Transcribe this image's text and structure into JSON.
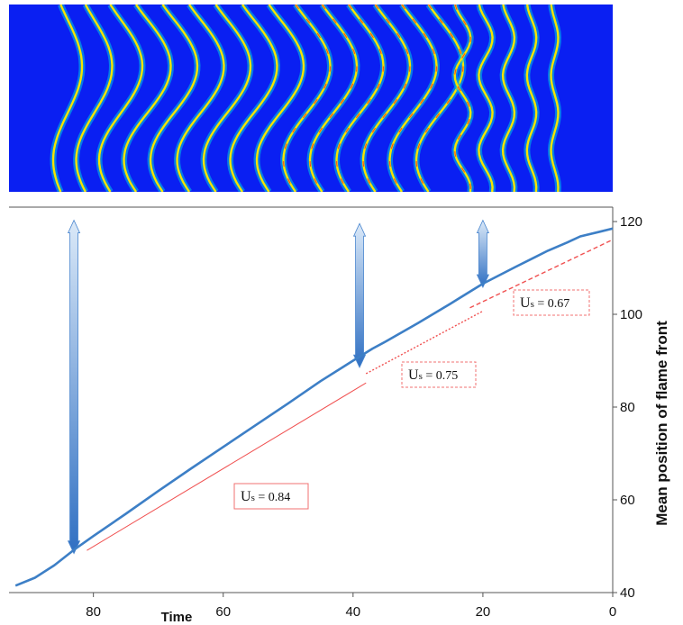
{
  "chart_data": {
    "type": "line",
    "title": "",
    "xlabel": "Time",
    "ylabel": "Mean position of flame front",
    "xlim": [
      0,
      93
    ],
    "x_reversed": true,
    "ylim": [
      40,
      120
    ],
    "x_ticks": [
      "80",
      "60",
      "40",
      "20",
      "0"
    ],
    "y_ticks": [
      "120",
      "100",
      "80",
      "60",
      "40"
    ],
    "y_axis_side": "right",
    "grid": false,
    "legend": "none",
    "series": [
      {
        "color": "#3d7fc6",
        "x": [
          92,
          89,
          86,
          83,
          80,
          75,
          70,
          65,
          60,
          55,
          50,
          45,
          40,
          37,
          35,
          30,
          25,
          20,
          15,
          12,
          10,
          7,
          5,
          2,
          0
        ],
        "y": [
          41.5,
          43.2,
          45.9,
          49.2,
          52.2,
          57.0,
          61.9,
          66.7,
          71.4,
          76.1,
          80.8,
          85.6,
          90.0,
          92.6,
          94.1,
          98.1,
          102.3,
          106.6,
          110.2,
          112.3,
          113.7,
          115.5,
          116.8,
          117.8,
          118.5
        ]
      }
    ],
    "fit_lines": [
      {
        "label_main": "U",
        "label_sub": "s",
        "label_value": " = 0.84",
        "slope": 0.84,
        "style": "solid",
        "x": [
          81,
          38
        ],
        "y": [
          49.1,
          85.2
        ]
      },
      {
        "label_main": "U",
        "label_sub": "s",
        "label_value": " = 0.75",
        "slope": 0.75,
        "style": "dotted",
        "x": [
          38,
          20
        ],
        "y": [
          87.2,
          100.7
        ]
      },
      {
        "label_main": "U",
        "label_sub": "s",
        "label_value": " = 0.67",
        "slope": 0.67,
        "style": "dashed",
        "x": [
          22,
          0
        ],
        "y": [
          101.4,
          116.1
        ]
      }
    ],
    "arrows": [
      {
        "x": 83,
        "from_y": 119.5,
        "to_y": 49.2
      },
      {
        "x": 39,
        "from_y": 118.8,
        "to_y": 89.3
      },
      {
        "x": 20,
        "from_y": 119.5,
        "to_y": 106.6
      }
    ],
    "inset_image": {
      "description_colors": {
        "background": "#0a1ff2",
        "front_edge": "#00c8e0",
        "front_core": "#f5e400",
        "front_hot": "#ff3b1f"
      },
      "front_count": 20
    }
  }
}
